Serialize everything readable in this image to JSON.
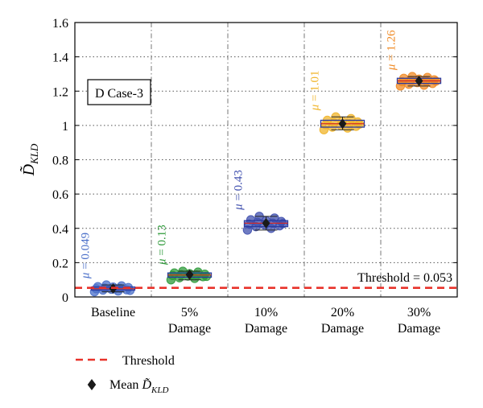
{
  "chart_data": {
    "type": "box",
    "categories": [
      "Baseline",
      "5%\nDamage",
      "10%\nDamage",
      "20%\nDamage",
      "30%\nDamage"
    ],
    "series": [
      {
        "values": [
          0.049,
          0.13,
          0.43,
          1.01,
          1.26
        ]
      }
    ],
    "mean_labels": [
      "μ = 0.049",
      "μ = 0.13",
      "μ = 0.43",
      "μ = 1.01",
      "μ = 1.26"
    ],
    "box_stats": [
      {
        "q1": 0.04,
        "q3": 0.058,
        "min": 0.03,
        "max": 0.07,
        "median": 0.048
      },
      {
        "q1": 0.115,
        "q3": 0.14,
        "min": 0.1,
        "max": 0.15,
        "median": 0.128
      },
      {
        "q1": 0.41,
        "q3": 0.445,
        "min": 0.39,
        "max": 0.47,
        "median": 0.43
      },
      {
        "q1": 0.99,
        "q3": 1.03,
        "min": 0.975,
        "max": 1.05,
        "median": 1.01
      },
      {
        "q1": 1.245,
        "q3": 1.275,
        "min": 1.23,
        "max": 1.285,
        "median": 1.26
      }
    ],
    "points": [
      [
        0.03,
        0.035,
        0.04,
        0.042,
        0.045,
        0.048,
        0.05,
        0.052,
        0.055,
        0.058,
        0.06,
        0.065,
        0.07,
        0.038,
        0.047
      ],
      [
        0.1,
        0.108,
        0.112,
        0.118,
        0.122,
        0.125,
        0.128,
        0.13,
        0.133,
        0.136,
        0.14,
        0.145,
        0.15,
        0.12,
        0.127
      ],
      [
        0.39,
        0.4,
        0.41,
        0.415,
        0.42,
        0.425,
        0.43,
        0.435,
        0.44,
        0.445,
        0.45,
        0.46,
        0.47,
        0.428
      ],
      [
        0.975,
        0.985,
        0.99,
        0.995,
        1.0,
        1.005,
        1.01,
        1.015,
        1.02,
        1.025,
        1.03,
        1.04,
        1.05,
        1.008
      ],
      [
        1.23,
        1.235,
        1.24,
        1.245,
        1.25,
        1.255,
        1.26,
        1.263,
        1.266,
        1.27,
        1.275,
        1.28,
        1.285,
        1.258
      ]
    ],
    "colors": [
      "#4a6fc9",
      "#2e9a3a",
      "#3f4fae",
      "#f0b429",
      "#f08a24"
    ],
    "marker_color": "#1a1a1a",
    "threshold": {
      "value": 0.053,
      "label": "Threshold = 0.053",
      "color": "#e8322a"
    },
    "ylim": [
      0,
      1.6
    ],
    "yticks": [
      0,
      0.2,
      0.4,
      0.6,
      0.8,
      1,
      1.2,
      1.4,
      1.6
    ],
    "ylabel": "D̃KLD",
    "annotation": "D Case-3",
    "grid": true,
    "legend": [
      {
        "label": "Threshold",
        "kind": "dashed-line"
      },
      {
        "label": "Mean D̃KLD",
        "kind": "diamond"
      }
    ]
  }
}
